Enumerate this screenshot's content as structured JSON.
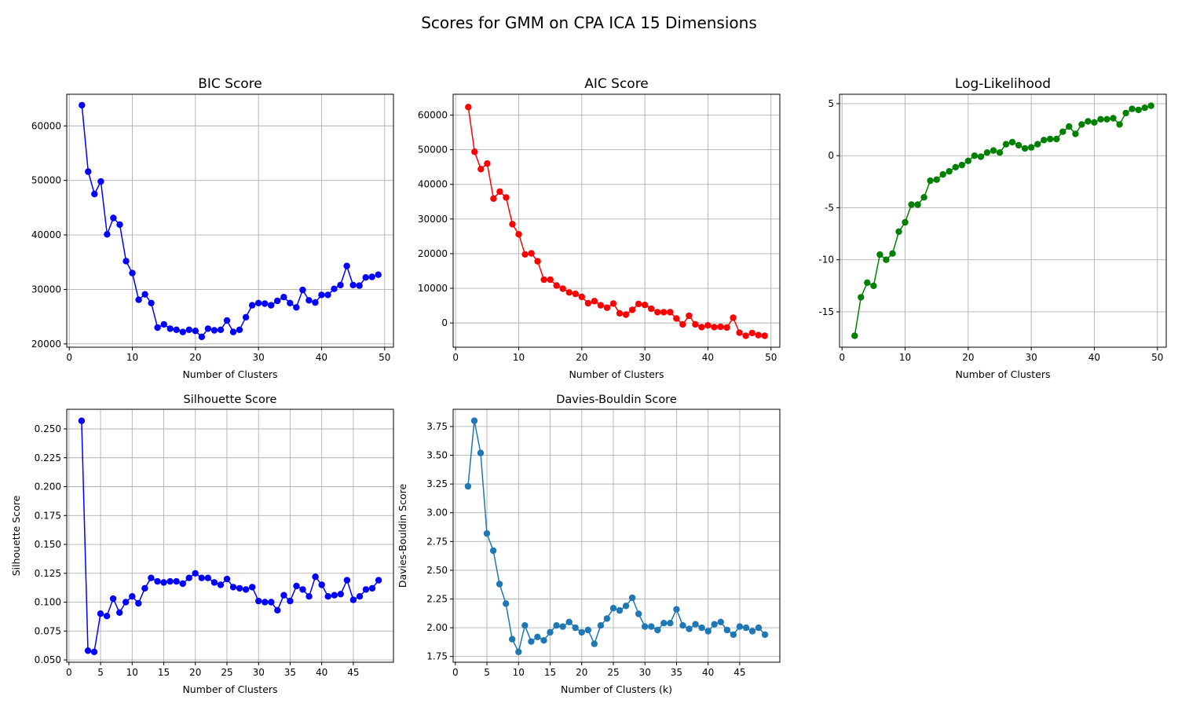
{
  "figure": {
    "suptitle": "Scores for GMM on CPA ICA 15 Dimensions"
  },
  "chart_data": [
    {
      "type": "line",
      "title": "BIC Score",
      "xlabel": "Number of Clusters",
      "ylabel": "",
      "color": "#0000ff",
      "xlim": [
        -0.4,
        51.4
      ],
      "ylim": [
        19400,
        65800
      ],
      "xticks": [
        0,
        10,
        20,
        30,
        40,
        50
      ],
      "yticks": [
        20000,
        30000,
        40000,
        50000,
        60000
      ],
      "grid": true,
      "x": [
        2,
        3,
        4,
        5,
        6,
        7,
        8,
        9,
        10,
        11,
        12,
        13,
        14,
        15,
        16,
        17,
        18,
        19,
        20,
        21,
        22,
        23,
        24,
        25,
        26,
        27,
        28,
        29,
        30,
        31,
        32,
        33,
        34,
        35,
        36,
        37,
        38,
        39,
        40,
        41,
        42,
        43,
        44,
        45,
        46,
        47,
        48,
        49
      ],
      "y": [
        63800,
        51600,
        47500,
        49800,
        40100,
        43100,
        41900,
        35200,
        33000,
        28100,
        29100,
        27500,
        23000,
        23600,
        22800,
        22600,
        22200,
        22600,
        22400,
        21300,
        22800,
        22500,
        22600,
        24300,
        22200,
        22600,
        24900,
        27100,
        27500,
        27400,
        27100,
        27900,
        28600,
        27500,
        26700,
        29900,
        28000,
        27600,
        29000,
        29000,
        30100,
        30800,
        34300,
        30800,
        30700,
        32200,
        32300,
        32700
      ]
    },
    {
      "type": "line",
      "title": "AIC Score",
      "xlabel": "Number of Clusters",
      "ylabel": "",
      "color": "#ff0000",
      "xlim": [
        -0.4,
        51.4
      ],
      "ylim": [
        -7000,
        66000
      ],
      "xticks": [
        0,
        10,
        20,
        30,
        40,
        50
      ],
      "yticks": [
        0,
        10000,
        20000,
        30000,
        40000,
        50000,
        60000
      ],
      "grid": true,
      "x": [
        2,
        3,
        4,
        5,
        6,
        7,
        8,
        9,
        10,
        11,
        12,
        13,
        14,
        15,
        16,
        17,
        18,
        19,
        20,
        21,
        22,
        23,
        24,
        25,
        26,
        27,
        28,
        29,
        30,
        31,
        32,
        33,
        34,
        35,
        36,
        37,
        38,
        39,
        40,
        41,
        42,
        43,
        44,
        45,
        46,
        47,
        48,
        49
      ],
      "y": [
        62300,
        49400,
        44400,
        46000,
        35900,
        37900,
        36200,
        28500,
        25600,
        19800,
        20100,
        17800,
        12500,
        12500,
        10800,
        9900,
        8800,
        8400,
        7500,
        5700,
        6300,
        5100,
        4400,
        5600,
        2800,
        2400,
        3800,
        5500,
        5200,
        4100,
        3100,
        3100,
        3100,
        1300,
        -400,
        2100,
        -400,
        -1200,
        -700,
        -1200,
        -1100,
        -1300,
        1500,
        -2800,
        -3700,
        -2900,
        -3500,
        -3700
      ]
    },
    {
      "type": "line",
      "title": "Log-Likelihood",
      "xlabel": "Number of Clusters",
      "ylabel": "",
      "color": "#008000",
      "xlim": [
        -0.4,
        51.4
      ],
      "ylim": [
        -18.4,
        5.9
      ],
      "xticks": [
        0,
        10,
        20,
        30,
        40,
        50
      ],
      "yticks": [
        -15,
        -10,
        -5,
        0,
        5
      ],
      "grid": true,
      "x": [
        2,
        3,
        4,
        5,
        6,
        7,
        8,
        9,
        10,
        11,
        12,
        13,
        14,
        15,
        16,
        17,
        18,
        19,
        20,
        21,
        22,
        23,
        24,
        25,
        26,
        27,
        28,
        29,
        30,
        31,
        32,
        33,
        34,
        35,
        36,
        37,
        38,
        39,
        40,
        41,
        42,
        43,
        44,
        45,
        46,
        47,
        48,
        49
      ],
      "y": [
        -17.3,
        -13.6,
        -12.2,
        -12.5,
        -9.5,
        -10.0,
        -9.4,
        -7.3,
        -6.4,
        -4.7,
        -4.7,
        -4.0,
        -2.4,
        -2.3,
        -1.8,
        -1.5,
        -1.1,
        -0.9,
        -0.5,
        0.0,
        -0.1,
        0.3,
        0.5,
        0.3,
        1.1,
        1.3,
        1.0,
        0.7,
        0.8,
        1.1,
        1.5,
        1.6,
        1.6,
        2.3,
        2.8,
        2.1,
        3.0,
        3.3,
        3.2,
        3.5,
        3.5,
        3.6,
        3.0,
        4.1,
        4.5,
        4.4,
        4.6,
        4.8
      ]
    },
    {
      "type": "line",
      "title": "Silhouette Score",
      "xlabel": "Number of Clusters",
      "ylabel": "Silhouette Score",
      "color": "#0000ff",
      "xlim": [
        -0.35,
        51.35
      ],
      "ylim": [
        0.048,
        0.267
      ],
      "xticks": [
        0,
        5,
        10,
        15,
        20,
        25,
        30,
        35,
        40,
        45
      ],
      "yticks": [
        0.05,
        0.075,
        0.1,
        0.125,
        0.15,
        0.175,
        0.2,
        0.225,
        0.25
      ],
      "ytick_labels": [
        "0.050",
        "0.075",
        "0.100",
        "0.125",
        "0.150",
        "0.175",
        "0.200",
        "0.225",
        "0.250"
      ],
      "grid": true,
      "x": [
        2,
        3,
        4,
        5,
        6,
        7,
        8,
        9,
        10,
        11,
        12,
        13,
        14,
        15,
        16,
        17,
        18,
        19,
        20,
        21,
        22,
        23,
        24,
        25,
        26,
        27,
        28,
        29,
        30,
        31,
        32,
        33,
        34,
        35,
        36,
        37,
        38,
        39,
        40,
        41,
        42,
        43,
        44,
        45,
        46,
        47,
        48,
        49
      ],
      "y": [
        0.257,
        0.058,
        0.057,
        0.09,
        0.088,
        0.103,
        0.091,
        0.1,
        0.105,
        0.099,
        0.112,
        0.121,
        0.118,
        0.117,
        0.118,
        0.118,
        0.116,
        0.121,
        0.125,
        0.121,
        0.121,
        0.117,
        0.115,
        0.12,
        0.113,
        0.112,
        0.111,
        0.113,
        0.101,
        0.1,
        0.1,
        0.093,
        0.106,
        0.101,
        0.114,
        0.111,
        0.105,
        0.122,
        0.115,
        0.105,
        0.106,
        0.107,
        0.119,
        0.102,
        0.105,
        0.111,
        0.112,
        0.119
      ]
    },
    {
      "type": "line",
      "title": "Davies-Bouldin Score",
      "xlabel": "Number of Clusters (k)",
      "ylabel": "Davies-Bouldin Score",
      "color": "#1f77b4",
      "xlim": [
        -0.35,
        51.35
      ],
      "ylim": [
        1.7,
        3.9
      ],
      "xticks": [
        0,
        5,
        10,
        15,
        20,
        25,
        30,
        35,
        40,
        45
      ],
      "yticks": [
        1.75,
        2.0,
        2.25,
        2.5,
        2.75,
        3.0,
        3.25,
        3.5,
        3.75
      ],
      "ytick_labels": [
        "1.75",
        "2.00",
        "2.25",
        "2.50",
        "2.75",
        "3.00",
        "3.25",
        "3.50",
        "3.75"
      ],
      "grid": true,
      "x": [
        2,
        3,
        4,
        5,
        6,
        7,
        8,
        9,
        10,
        11,
        12,
        13,
        14,
        15,
        16,
        17,
        18,
        19,
        20,
        21,
        22,
        23,
        24,
        25,
        26,
        27,
        28,
        29,
        30,
        31,
        32,
        33,
        34,
        35,
        36,
        37,
        38,
        39,
        40,
        41,
        42,
        43,
        44,
        45,
        46,
        47,
        48,
        49
      ],
      "y": [
        3.23,
        3.8,
        3.52,
        2.82,
        2.67,
        2.38,
        2.21,
        1.9,
        1.79,
        2.02,
        1.88,
        1.92,
        1.89,
        1.96,
        2.02,
        2.01,
        2.05,
        2.0,
        1.96,
        1.98,
        1.86,
        2.02,
        2.08,
        2.17,
        2.15,
        2.19,
        2.26,
        2.12,
        2.01,
        2.01,
        1.98,
        2.04,
        2.04,
        2.16,
        2.02,
        1.99,
        2.03,
        2.0,
        1.97,
        2.03,
        2.05,
        1.98,
        1.94,
        2.01,
        2.0,
        1.97,
        2.0,
        1.94
      ]
    }
  ]
}
